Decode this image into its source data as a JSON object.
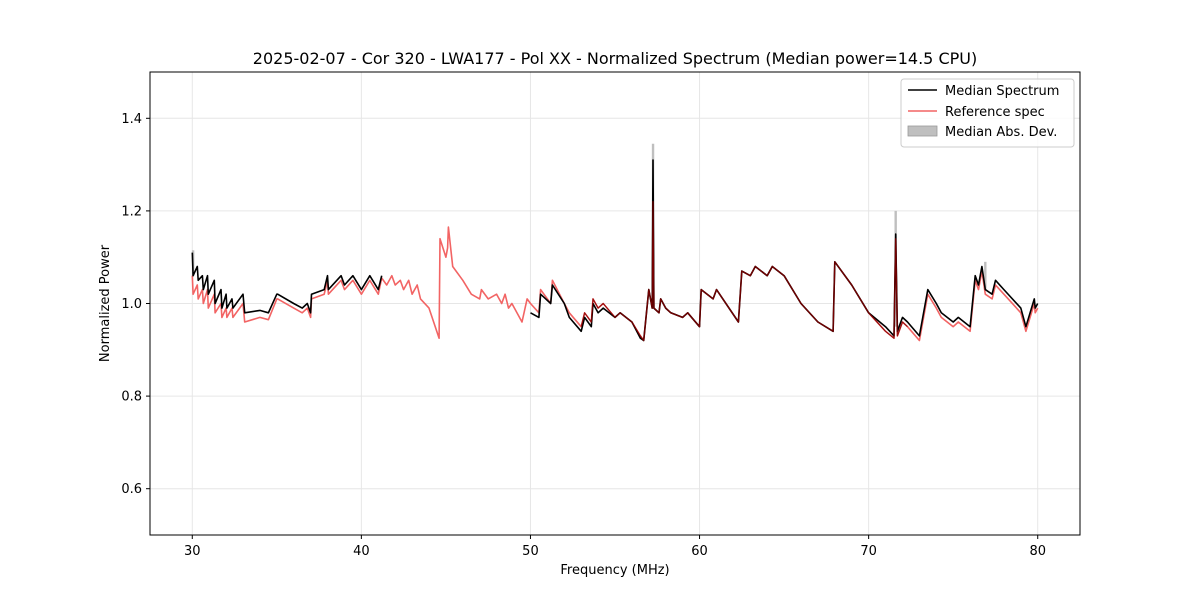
{
  "chart_data": {
    "type": "line",
    "title": "2025-02-07 - Cor 320 - LWA177 - Pol XX - Normalized Spectrum (Median power=14.5 CPU)",
    "xlabel": "Frequency (MHz)",
    "ylabel": "Normalized Power",
    "xlim": [
      27.5,
      82.5
    ],
    "ylim": [
      0.5,
      1.5
    ],
    "xticks": [
      30,
      40,
      50,
      60,
      70,
      80
    ],
    "yticks": [
      0.6,
      0.8,
      1.0,
      1.2,
      1.4
    ],
    "xtick_labels": [
      "30",
      "40",
      "50",
      "60",
      "70",
      "80"
    ],
    "ytick_labels": [
      "0.6",
      "0.8",
      "1.0",
      "1.2",
      "1.4"
    ],
    "grid": true,
    "legend_position": "upper right",
    "legend": [
      "Median Spectrum",
      "Reference spec",
      "Median Abs. Dev."
    ],
    "colors": {
      "median": "#000000",
      "reference": "#f26464",
      "mad": "#bfbfbf",
      "overlap": "#8b0000",
      "grid": "#e6e6e6"
    },
    "series": [
      {
        "name": "Median Spectrum",
        "x": [
          30.0,
          30.05,
          30.3,
          30.35,
          30.6,
          30.65,
          30.9,
          30.95,
          31.3,
          31.35,
          31.7,
          31.75,
          32.0,
          32.05,
          32.35,
          32.4,
          33.0,
          33.1,
          34.0,
          34.5,
          35.0,
          35.05,
          36.0,
          36.5,
          36.8,
          37.0,
          37.05,
          37.8,
          38.0,
          38.05,
          38.8,
          39.0,
          39.5,
          40.0,
          40.5,
          41.0,
          41.2,
          null,
          50.0,
          50.5,
          50.6,
          51.2,
          51.3,
          52.0,
          52.3,
          53.0,
          53.2,
          53.6,
          53.7,
          54.0,
          54.3,
          55.0,
          55.3,
          56.0,
          56.5,
          56.7,
          57.0,
          57.2,
          57.25,
          57.3,
          57.6,
          57.7,
          58.0,
          58.3,
          59.0,
          59.3,
          60.0,
          60.1,
          60.8,
          61.0,
          62.3,
          62.5,
          63.0,
          63.3,
          64.0,
          64.3,
          65.0,
          66.0,
          67.0,
          67.9,
          68.0,
          69.0,
          70.0,
          71.0,
          71.5,
          71.6,
          71.7,
          72.0,
          72.3,
          73.0,
          73.5,
          74.0,
          74.3,
          75.0,
          75.3,
          76.0,
          76.3,
          76.5,
          76.7,
          76.9,
          77.3,
          77.5,
          78.0,
          79.0,
          79.3,
          79.8,
          79.85,
          80.0
        ],
        "values": [
          1.11,
          1.06,
          1.08,
          1.05,
          1.06,
          1.03,
          1.06,
          1.02,
          1.05,
          1.0,
          1.03,
          0.99,
          1.02,
          0.99,
          1.01,
          0.99,
          1.02,
          0.98,
          0.985,
          0.98,
          1.02,
          1.02,
          1.0,
          0.99,
          1.0,
          0.98,
          1.02,
          1.03,
          1.06,
          1.03,
          1.06,
          1.04,
          1.06,
          1.03,
          1.06,
          1.03,
          1.06,
          null,
          0.98,
          0.97,
          1.02,
          1.0,
          1.04,
          1.0,
          0.97,
          0.94,
          0.97,
          0.95,
          1.0,
          0.98,
          0.99,
          0.97,
          0.98,
          0.96,
          0.925,
          0.92,
          1.03,
          0.99,
          1.31,
          0.99,
          0.98,
          1.01,
          0.99,
          0.98,
          0.97,
          0.98,
          0.95,
          1.03,
          1.01,
          1.03,
          0.96,
          1.07,
          1.06,
          1.08,
          1.06,
          1.08,
          1.06,
          1.0,
          0.96,
          0.94,
          1.09,
          1.04,
          0.98,
          0.95,
          0.93,
          1.15,
          0.94,
          0.97,
          0.96,
          0.93,
          1.03,
          1.0,
          0.98,
          0.96,
          0.97,
          0.95,
          1.06,
          1.04,
          1.08,
          1.03,
          1.02,
          1.05,
          1.03,
          0.99,
          0.95,
          1.01,
          0.99,
          1.0
        ]
      },
      {
        "name": "Reference spec",
        "x": [
          30.0,
          30.05,
          30.3,
          30.35,
          30.6,
          30.65,
          30.9,
          30.95,
          31.3,
          31.35,
          31.7,
          31.75,
          32.0,
          32.05,
          32.35,
          32.4,
          33.0,
          33.1,
          34.0,
          34.5,
          35.0,
          35.05,
          36.0,
          36.5,
          36.8,
          37.0,
          37.05,
          37.8,
          38.0,
          38.05,
          38.8,
          39.0,
          39.5,
          40.0,
          40.5,
          41.0,
          41.2,
          41.5,
          41.8,
          42.0,
          42.3,
          42.5,
          42.8,
          43.0,
          43.3,
          43.5,
          44.0,
          44.6,
          44.65,
          45.0,
          45.1,
          45.15,
          45.4,
          46.0,
          46.5,
          47.0,
          47.1,
          47.5,
          48.0,
          48.3,
          48.5,
          48.7,
          48.9,
          49.5,
          49.8,
          50.0,
          50.5,
          50.6,
          51.2,
          51.3,
          52.0,
          52.3,
          53.0,
          53.2,
          53.6,
          53.7,
          54.0,
          54.3,
          55.0,
          55.3,
          56.0,
          56.5,
          56.7,
          57.0,
          57.2,
          57.25,
          57.3,
          57.6,
          57.7,
          58.0,
          58.3,
          59.0,
          59.3,
          60.0,
          60.1,
          60.8,
          61.0,
          62.3,
          62.5,
          63.0,
          63.3,
          64.0,
          64.3,
          65.0,
          66.0,
          67.0,
          67.9,
          68.0,
          69.0,
          70.0,
          71.0,
          71.5,
          71.6,
          71.7,
          72.0,
          72.3,
          73.0,
          73.5,
          74.0,
          74.3,
          75.0,
          75.3,
          76.0,
          76.3,
          76.5,
          76.7,
          76.9,
          77.3,
          77.5,
          78.0,
          79.0,
          79.3,
          79.8,
          79.85,
          80.0
        ],
        "values": [
          1.06,
          1.02,
          1.04,
          1.01,
          1.03,
          1.0,
          1.03,
          0.99,
          1.02,
          0.98,
          1.0,
          0.97,
          0.99,
          0.97,
          0.99,
          0.97,
          1.0,
          0.96,
          0.97,
          0.965,
          1.01,
          1.01,
          0.99,
          0.98,
          0.99,
          0.97,
          1.01,
          1.02,
          1.05,
          1.02,
          1.05,
          1.03,
          1.05,
          1.02,
          1.05,
          1.02,
          1.055,
          1.04,
          1.06,
          1.04,
          1.05,
          1.03,
          1.05,
          1.02,
          1.04,
          1.01,
          0.99,
          0.925,
          1.14,
          1.1,
          1.12,
          1.165,
          1.08,
          1.05,
          1.02,
          1.01,
          1.03,
          1.01,
          1.02,
          1.0,
          1.02,
          0.99,
          1.0,
          0.96,
          1.01,
          1.0,
          0.98,
          1.03,
          1.0,
          1.05,
          1.0,
          0.98,
          0.95,
          0.98,
          0.96,
          1.01,
          0.99,
          1.0,
          0.97,
          0.98,
          0.96,
          0.93,
          0.92,
          1.03,
          0.99,
          1.22,
          0.99,
          0.98,
          1.01,
          0.99,
          0.98,
          0.97,
          0.98,
          0.95,
          1.03,
          1.01,
          1.03,
          0.96,
          1.07,
          1.06,
          1.08,
          1.06,
          1.08,
          1.06,
          1.0,
          0.96,
          0.94,
          1.09,
          1.04,
          0.98,
          0.94,
          0.925,
          1.14,
          0.93,
          0.96,
          0.95,
          0.92,
          1.02,
          0.99,
          0.97,
          0.95,
          0.96,
          0.94,
          1.05,
          1.03,
          1.07,
          1.02,
          1.01,
          1.04,
          1.02,
          0.98,
          0.94,
          1.0,
          0.98,
          0.99
        ]
      },
      {
        "name": "Median Abs. Dev.",
        "spikes": [
          {
            "x": 57.25,
            "low": 1.0,
            "high": 1.345
          },
          {
            "x": 71.6,
            "low": 0.95,
            "high": 1.2
          },
          {
            "x": 76.9,
            "low": 1.03,
            "high": 1.09
          },
          {
            "x": 30.05,
            "low": 1.06,
            "high": 1.115
          }
        ]
      }
    ]
  }
}
